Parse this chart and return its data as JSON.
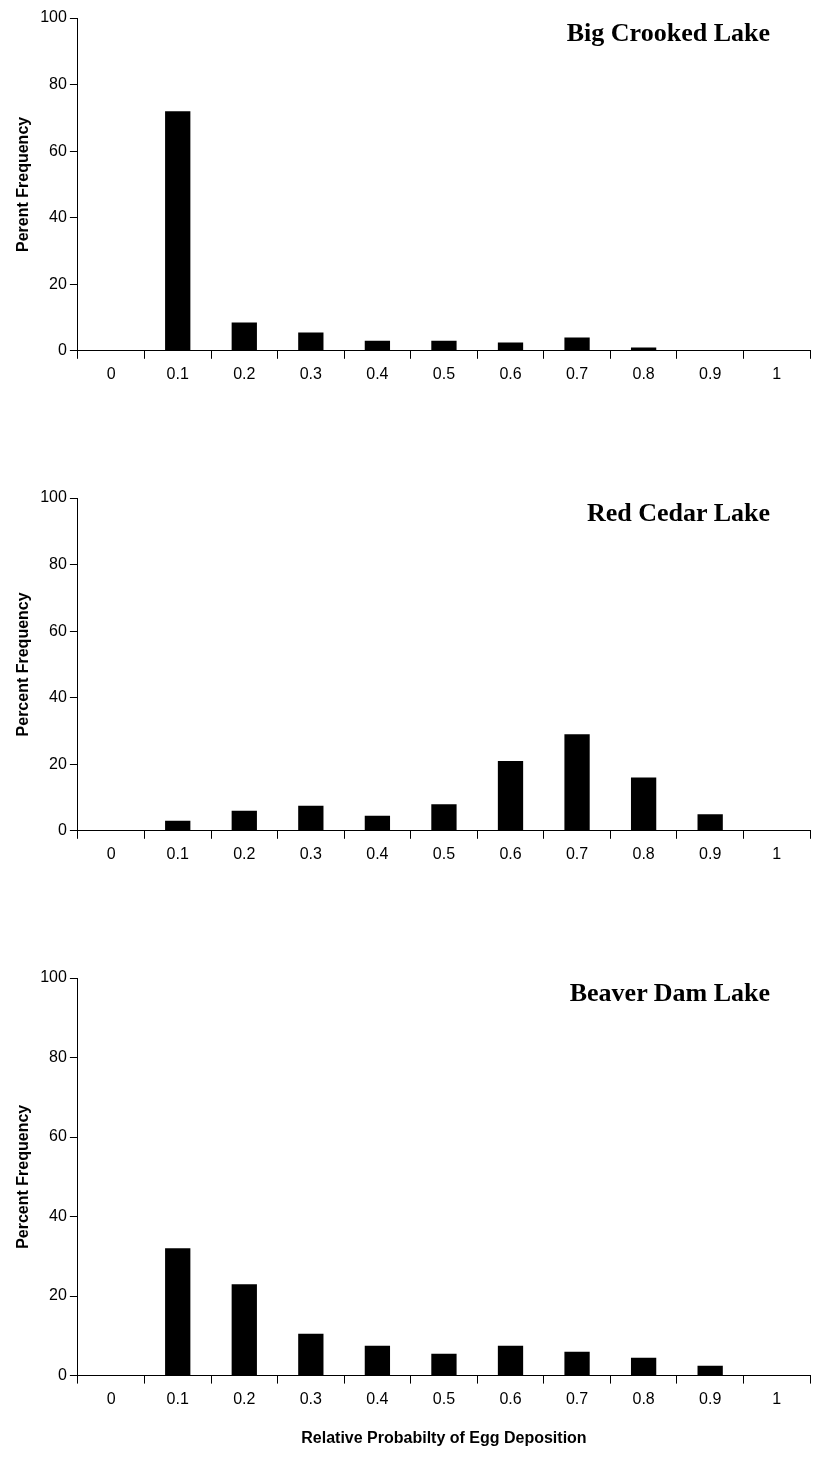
{
  "chart_data": [
    {
      "type": "bar",
      "title": "Big Crooked Lake",
      "ylabel": "Perent Frequency",
      "categories": [
        "0",
        "0.1",
        "0.2",
        "0.3",
        "0.4",
        "0.5",
        "0.6",
        "0.7",
        "0.8",
        "0.9",
        "1"
      ],
      "values": [
        0,
        72,
        8.5,
        5.5,
        3,
        3,
        2.5,
        4,
        1,
        0,
        0
      ],
      "color": "#000000",
      "ylim": [
        0,
        100
      ],
      "yticks": [
        0,
        20,
        40,
        60,
        80,
        100
      ],
      "grid": false,
      "legend": false
    },
    {
      "type": "bar",
      "title": "Red Cedar Lake",
      "ylabel": "Percent Frequency",
      "categories": [
        "0",
        "0.1",
        "0.2",
        "0.3",
        "0.4",
        "0.5",
        "0.6",
        "0.7",
        "0.8",
        "0.9",
        "1"
      ],
      "values": [
        0,
        3,
        6,
        7.5,
        4.5,
        8,
        21,
        29,
        16,
        5,
        0
      ],
      "color": "#000000",
      "ylim": [
        0,
        100
      ],
      "yticks": [
        0,
        20,
        40,
        60,
        80,
        100
      ],
      "grid": false,
      "legend": false
    },
    {
      "type": "bar",
      "title": "Beaver Dam Lake",
      "ylabel": "Percent Frequency",
      "xlabel": "Relative Probabilty of Egg Deposition",
      "categories": [
        "0",
        "0.1",
        "0.2",
        "0.3",
        "0.4",
        "0.5",
        "0.6",
        "0.7",
        "0.8",
        "0.9",
        "1"
      ],
      "values": [
        0,
        32,
        23,
        10.5,
        7.5,
        5.5,
        7.5,
        6,
        4.5,
        2.5,
        0
      ],
      "color": "#000000",
      "ylim": [
        0,
        100
      ],
      "yticks": [
        0,
        20,
        40,
        60,
        80,
        100
      ],
      "grid": false,
      "legend": false
    }
  ]
}
